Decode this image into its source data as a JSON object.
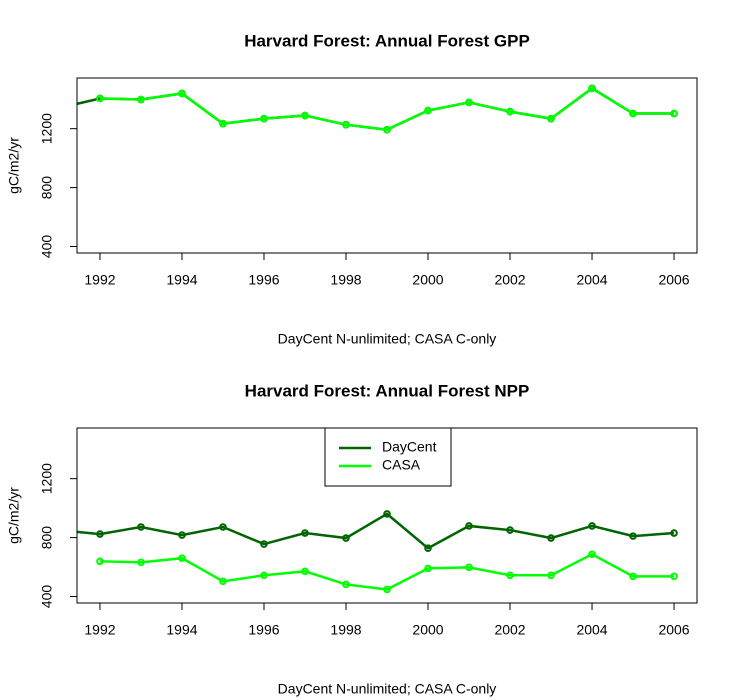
{
  "chart_data": [
    {
      "type": "line",
      "title": "Harvard Forest: Annual Forest GPP",
      "xlabel": "DayCent N-unlimited; CASA C-only",
      "ylabel": "gC/m2/yr",
      "x": [
        1991,
        1992,
        1993,
        1994,
        1995,
        1996,
        1997,
        1998,
        1999,
        2000,
        2001,
        2002,
        2003,
        2004,
        2005,
        2006
      ],
      "xlim": [
        1991.44,
        2006.56
      ],
      "ylim": [
        356,
        1544
      ],
      "xticks": [
        1992,
        1994,
        1996,
        1998,
        2000,
        2002,
        2004,
        2006
      ],
      "yticks": [
        400,
        800,
        1200
      ],
      "legend": false,
      "series": [
        {
          "name": "DayCent",
          "color": "#006400",
          "values": [
            1340,
            1405,
            1398,
            1439,
            1234,
            1268,
            1289,
            1227,
            1193,
            1323,
            1378,
            1316,
            1268,
            1474,
            1303,
            1303
          ]
        },
        {
          "name": "CASA",
          "color": "#00ff00",
          "values": [
            null,
            1405,
            1398,
            1439,
            1234,
            1268,
            1289,
            1227,
            1193,
            1323,
            1378,
            1316,
            1268,
            1474,
            1303,
            1303
          ]
        }
      ]
    },
    {
      "type": "line",
      "title": "Harvard Forest: Annual Forest NPP",
      "xlabel": "DayCent N-unlimited; CASA C-only",
      "ylabel": "gC/m2/yr",
      "x": [
        1991,
        1992,
        1993,
        1994,
        1995,
        1996,
        1997,
        1998,
        1999,
        2000,
        2001,
        2002,
        2003,
        2004,
        2005,
        2006
      ],
      "xlim": [
        1991.44,
        2006.56
      ],
      "ylim": [
        356,
        1544
      ],
      "xticks": [
        1992,
        1994,
        1996,
        1998,
        2000,
        2002,
        2004,
        2006
      ],
      "yticks": [
        400,
        800,
        1200
      ],
      "legend": "top",
      "series": [
        {
          "name": "DayCent",
          "color": "#006400",
          "values": [
            851,
            824,
            872,
            817,
            872,
            756,
            831,
            797,
            961,
            728,
            879,
            851,
            797,
            879,
            810,
            831
          ]
        },
        {
          "name": "CASA",
          "color": "#00ff00",
          "values": [
            null,
            639,
            632,
            660,
            503,
            544,
            571,
            482,
            448,
            591,
            598,
            544,
            544,
            687,
            537,
            537
          ]
        }
      ]
    }
  ]
}
